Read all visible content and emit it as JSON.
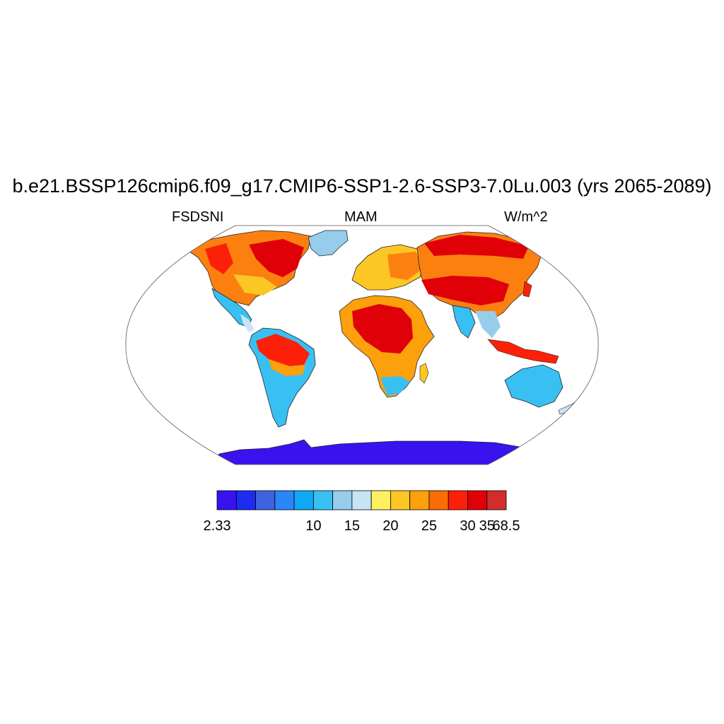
{
  "header": {
    "title": "b.e21.BSSP126cmip6.f09_g17.CMIP6-SSP1-2.6-SSP3-7.0Lu.003 (yrs 2065-2089)",
    "left_label": "FSDSNI",
    "center_label": "MAM",
    "right_label": "W/m^2"
  },
  "colorbar": {
    "colors": [
      "#3a12f0",
      "#1c2cf2",
      "#3f62df",
      "#2a86f7",
      "#0fa8f7",
      "#38c0f3",
      "#96cdeb",
      "#c8e4f4",
      "#fff060",
      "#fcc624",
      "#fca00c",
      "#fc6c04",
      "#fc2008",
      "#e00008",
      "#d42c2c"
    ],
    "labels": [
      {
        "text": "2.33",
        "boundary": 0
      },
      {
        "text": "10",
        "boundary": 5
      },
      {
        "text": "15",
        "boundary": 7
      },
      {
        "text": "20",
        "boundary": 9
      },
      {
        "text": "25",
        "boundary": 11
      },
      {
        "text": "30",
        "boundary": 13
      },
      {
        "text": "35",
        "boundary": 14
      },
      {
        "text": "68.5",
        "boundary": 15
      }
    ]
  },
  "map": {
    "projection": "Robinson",
    "variable": "FSDSNI",
    "units": "W/m^2",
    "season": "MAM"
  }
}
